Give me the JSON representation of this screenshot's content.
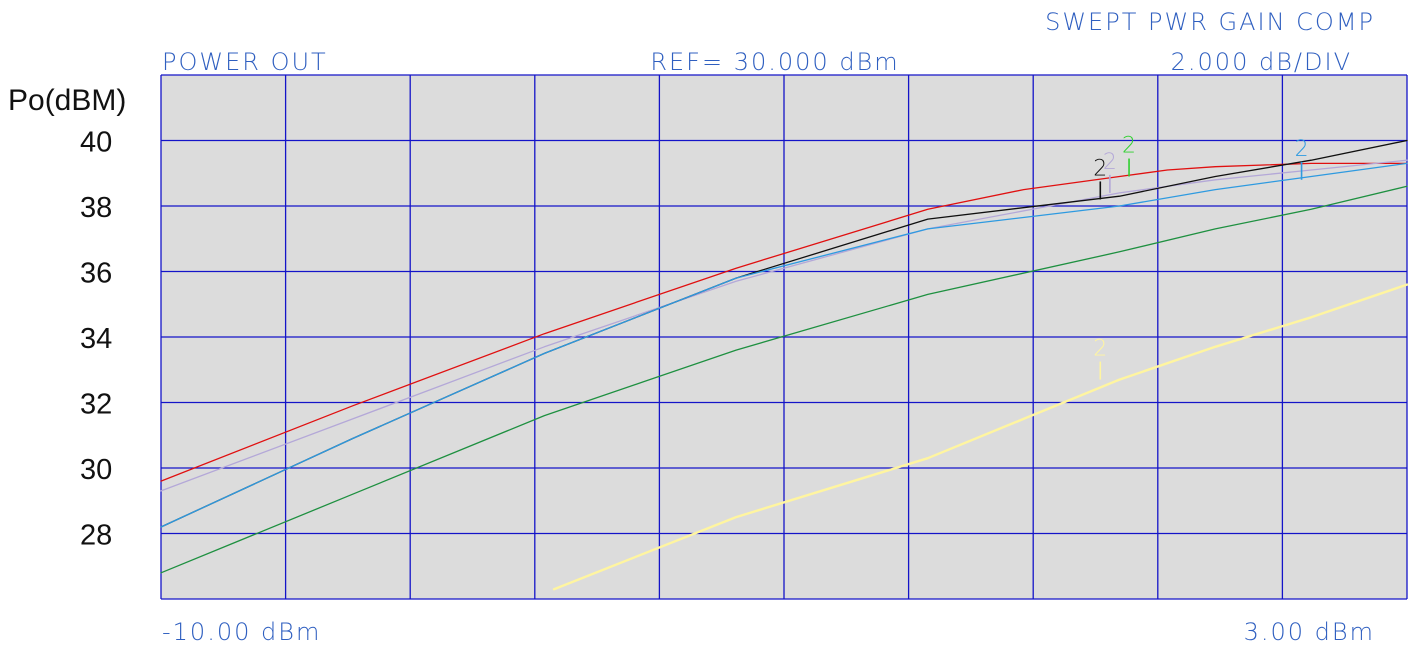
{
  "header": {
    "title": "SWEPT PWR GAIN COMP",
    "trace_label": "POWER OUT",
    "reference": "REF= 30.000 dBm",
    "scale": "2.000 dB/DIV"
  },
  "colors": {
    "plot_bg": "#dcdcdc",
    "grid": "#1414c8",
    "header_text": "#2f5fc0"
  },
  "chart_data": {
    "type": "line",
    "ylabel": "Po(dBM)",
    "x_start_label": "-10.00 dBm",
    "x_stop_label": "3.00 dBm",
    "xlim": [
      -10,
      3
    ],
    "ylim": [
      26,
      42
    ],
    "y_ticks": [
      28,
      30,
      32,
      34,
      36,
      38,
      40
    ],
    "grid": true,
    "series": [
      {
        "color": "#e01010",
        "width": 1.3,
        "x": [
          -10,
          -8,
          -6,
          -4,
          -2,
          -1,
          0,
          0.5,
          1,
          2,
          3
        ],
        "y": [
          29.6,
          31.9,
          34.1,
          36.1,
          37.9,
          38.5,
          38.9,
          39.1,
          39.2,
          39.3,
          39.3
        ]
      },
      {
        "color": "#b4a8d8",
        "width": 1.3,
        "x": [
          -10,
          -8,
          -6,
          -4,
          -2,
          0,
          1,
          2,
          3
        ],
        "y": [
          29.3,
          31.5,
          33.7,
          35.7,
          37.3,
          38.4,
          38.8,
          39.1,
          39.4
        ]
      },
      {
        "color": "#101010",
        "width": 1.3,
        "x": [
          -10,
          -8,
          -6,
          -4,
          -2,
          0,
          1,
          2,
          3
        ],
        "y": [
          28.2,
          30.9,
          33.5,
          35.8,
          37.6,
          38.3,
          38.9,
          39.4,
          40.0
        ]
      },
      {
        "color": "#2e9ae0",
        "width": 1.3,
        "x": [
          -10,
          -8,
          -6,
          -4,
          -2,
          0,
          1,
          2,
          3
        ],
        "y": [
          28.2,
          30.9,
          33.5,
          35.8,
          37.3,
          38.0,
          38.5,
          38.9,
          39.3
        ]
      },
      {
        "color": "#1e9040",
        "width": 1.3,
        "x": [
          -10,
          -8,
          -6,
          -4,
          -2,
          0,
          1,
          2,
          3
        ],
        "y": [
          26.8,
          29.2,
          31.6,
          33.6,
          35.3,
          36.6,
          37.3,
          37.9,
          38.6
        ]
      },
      {
        "color": "#fff5a0",
        "width": 2.4,
        "x": [
          -5.9,
          -4,
          -2,
          -1,
          0,
          1,
          2,
          3
        ],
        "y": [
          26.3,
          28.5,
          30.3,
          31.5,
          32.7,
          33.7,
          34.6,
          35.6
        ]
      }
    ],
    "markers": [
      {
        "label": "2",
        "color": "#101010",
        "x": -0.2,
        "y": 38.2
      },
      {
        "label": "2",
        "color": "#b4a8d8",
        "x": -0.1,
        "y": 38.4
      },
      {
        "label": "2",
        "color": "#30d030",
        "x": 0.1,
        "y": 38.9
      },
      {
        "label": "2",
        "color": "#2e9ae0",
        "x": 1.9,
        "y": 38.8
      },
      {
        "label": "2",
        "color": "#fff5a0",
        "x": -0.2,
        "y": 32.7
      }
    ]
  }
}
